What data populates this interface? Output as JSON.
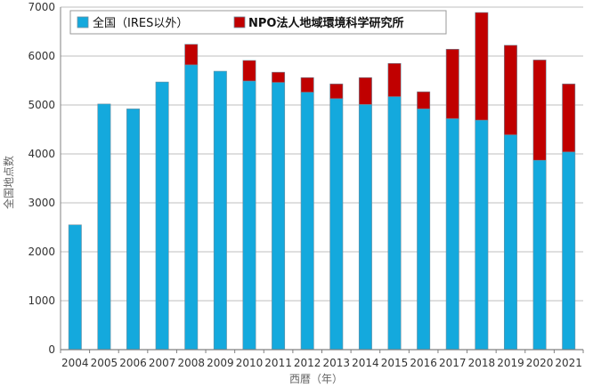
{
  "chart_data": {
    "type": "bar",
    "stacked": true,
    "title": "",
    "xlabel": "西暦（年）",
    "ylabel": "全国地点数",
    "ylim": [
      0,
      7000
    ],
    "yticks": [
      0,
      1000,
      2000,
      3000,
      4000,
      5000,
      6000,
      7000
    ],
    "grid": true,
    "legend_position": "top",
    "categories": [
      "2004",
      "2005",
      "2006",
      "2007",
      "2008",
      "2009",
      "2010",
      "2011",
      "2012",
      "2013",
      "2014",
      "2015",
      "2016",
      "2017",
      "2018",
      "2019",
      "2020",
      "2021"
    ],
    "series": [
      {
        "name": "全国（IRES以外）",
        "color": "#14A9DD",
        "values": [
          2550,
          5020,
          4920,
          5470,
          5820,
          5690,
          5490,
          5460,
          5260,
          5130,
          5010,
          5170,
          4920,
          4720,
          4690,
          4390,
          3870,
          4040
        ]
      },
      {
        "name": "NPO法人地域環境科学研究所",
        "color": "#C00000",
        "values": [
          0,
          0,
          0,
          0,
          420,
          0,
          420,
          210,
          300,
          300,
          550,
          680,
          350,
          1420,
          2200,
          1830,
          2050,
          1390
        ]
      }
    ]
  },
  "colors": {
    "grid": "#BFBFBF",
    "axis": "#808080",
    "bar_border": "#6E8FA0"
  }
}
